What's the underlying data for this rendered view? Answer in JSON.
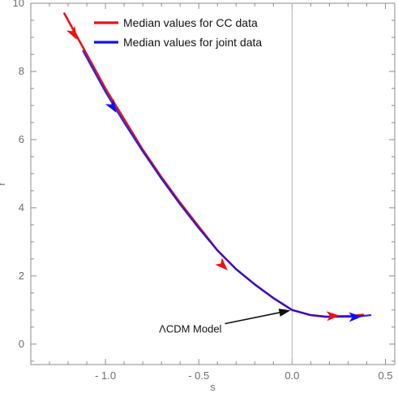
{
  "chart_data": {
    "type": "line",
    "title": "",
    "xlabel": "s",
    "ylabel": "r",
    "xlim": [
      -1.4,
      0.55
    ],
    "ylim": [
      -0.6,
      10
    ],
    "x_ticks": [
      -1.0,
      -0.5,
      0.0,
      0.5
    ],
    "x_tick_labels": [
      "- 1.0",
      "- 0.5",
      "0.0",
      "0.5"
    ],
    "y_ticks": [
      0,
      2,
      4,
      6,
      8,
      10
    ],
    "y_tick_labels": [
      "0",
      "2",
      "4",
      "6",
      "8",
      "10"
    ],
    "grid": false,
    "reference_line": {
      "x": 0.0
    },
    "legend": {
      "placement": "top-left",
      "entries": [
        {
          "label": "Median values for CC data",
          "color": "#ee1111"
        },
        {
          "label": "Median values for joint data",
          "color": "#1111ee"
        }
      ]
    },
    "series": [
      {
        "name": "Median values for CC data",
        "color": "#ee1111",
        "x": [
          -1.22,
          -1.1,
          -1.0,
          -0.9,
          -0.8,
          -0.7,
          -0.6,
          -0.5,
          -0.4,
          -0.3,
          -0.2,
          -0.1,
          0.0,
          0.1,
          0.18,
          0.25,
          0.32,
          0.38
        ],
        "y": [
          9.7,
          8.5,
          7.5,
          6.6,
          5.7,
          4.9,
          4.15,
          3.45,
          2.75,
          2.2,
          1.75,
          1.35,
          1.0,
          0.85,
          0.8,
          0.82,
          0.83,
          0.86
        ]
      },
      {
        "name": "Median values for joint data",
        "color": "#1111ee",
        "x": [
          -1.12,
          -1.0,
          -0.9,
          -0.8,
          -0.7,
          -0.6,
          -0.5,
          -0.4,
          -0.3,
          -0.2,
          -0.1,
          0.0,
          0.1,
          0.2,
          0.3,
          0.35,
          0.42
        ],
        "y": [
          8.6,
          7.4,
          6.5,
          5.65,
          4.85,
          4.1,
          3.4,
          2.75,
          2.2,
          1.75,
          1.35,
          1.0,
          0.85,
          0.8,
          0.8,
          0.81,
          0.85
        ]
      }
    ],
    "arrows": [
      {
        "series": 0,
        "x": -1.17,
        "y": 9.1
      },
      {
        "series": 0,
        "x": -0.37,
        "y": 2.3
      },
      {
        "series": 0,
        "x": 0.22,
        "y": 0.83
      },
      {
        "series": 1,
        "x": -0.96,
        "y": 6.95
      },
      {
        "series": 1,
        "x": 0.34,
        "y": 0.8
      }
    ],
    "annotations": [
      {
        "text": "ΛCDM Model",
        "points_to": {
          "x": 0.0,
          "y": 1.0
        },
        "anchor": {
          "x": -0.36,
          "y": 0.6
        }
      }
    ]
  }
}
